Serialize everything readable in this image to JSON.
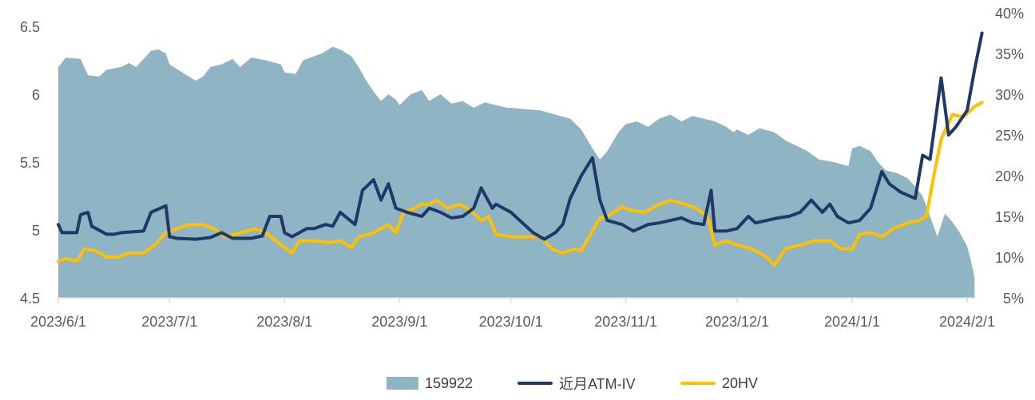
{
  "chart_data": {
    "type": "line",
    "x_ticks": [
      "2023/6/1",
      "2023/7/1",
      "2023/8/1",
      "2023/9/1",
      "2023/10/1",
      "2023/11/1",
      "2023/12/1",
      "2024/1/1",
      "2024/2/1"
    ],
    "y_left_ticks": [
      "4.5",
      "5",
      "5.5",
      "6",
      "6.5"
    ],
    "y_left_range": [
      4.5,
      6.5
    ],
    "y_right_ticks": [
      "5%",
      "10%",
      "15%",
      "20%",
      "25%",
      "30%",
      "35%",
      "40%"
    ],
    "y_right_range": [
      5,
      40
    ],
    "series": [
      {
        "name": "159922",
        "type": "area",
        "axis": "left",
        "color": "#8fb5c5",
        "points": [
          [
            "2023/6/1",
            6.2
          ],
          [
            "2023/6/3",
            6.27
          ],
          [
            "2023/6/7",
            6.26
          ],
          [
            "2023/6/9",
            6.14
          ],
          [
            "2023/6/12",
            6.13
          ],
          [
            "2023/6/14",
            6.18
          ],
          [
            "2023/6/18",
            6.2
          ],
          [
            "2023/6/20",
            6.23
          ],
          [
            "2023/6/22",
            6.2
          ],
          [
            "2023/6/26",
            6.32
          ],
          [
            "2023/6/28",
            6.33
          ],
          [
            "2023/6/30",
            6.3
          ],
          [
            "2023/7/1",
            6.22
          ],
          [
            "2023/7/5",
            6.15
          ],
          [
            "2023/7/8",
            6.1
          ],
          [
            "2023/7/10",
            6.13
          ],
          [
            "2023/7/12",
            6.2
          ],
          [
            "2023/7/15",
            6.22
          ],
          [
            "2023/7/18",
            6.26
          ],
          [
            "2023/7/20",
            6.2
          ],
          [
            "2023/7/23",
            6.27
          ],
          [
            "2023/7/27",
            6.25
          ],
          [
            "2023/7/31",
            6.22
          ],
          [
            "2023/8/1",
            6.16
          ],
          [
            "2023/8/4",
            6.15
          ],
          [
            "2023/8/6",
            6.25
          ],
          [
            "2023/8/9",
            6.28
          ],
          [
            "2023/8/11",
            6.3
          ],
          [
            "2023/8/14",
            6.35
          ],
          [
            "2023/8/16",
            6.33
          ],
          [
            "2023/8/19",
            6.28
          ],
          [
            "2023/8/21",
            6.2
          ],
          [
            "2023/8/23",
            6.1
          ],
          [
            "2023/8/25",
            6.02
          ],
          [
            "2023/8/27",
            5.95
          ],
          [
            "2023/8/29",
            6.0
          ],
          [
            "2023/8/31",
            5.96
          ],
          [
            "2023/9/1",
            5.92
          ],
          [
            "2023/9/4",
            6.0
          ],
          [
            "2023/9/7",
            6.03
          ],
          [
            "2023/9/9",
            5.95
          ],
          [
            "2023/9/12",
            6.0
          ],
          [
            "2023/9/15",
            5.93
          ],
          [
            "2023/9/18",
            5.95
          ],
          [
            "2023/9/21",
            5.9
          ],
          [
            "2023/9/24",
            5.94
          ],
          [
            "2023/9/27",
            5.92
          ],
          [
            "2023/9/30",
            5.9
          ],
          [
            "2023/10/1",
            5.9
          ],
          [
            "2023/10/9",
            5.88
          ],
          [
            "2023/10/13",
            5.85
          ],
          [
            "2023/10/17",
            5.82
          ],
          [
            "2023/10/20",
            5.74
          ],
          [
            "2023/10/23",
            5.6
          ],
          [
            "2023/10/25",
            5.52
          ],
          [
            "2023/10/27",
            5.58
          ],
          [
            "2023/10/30",
            5.72
          ],
          [
            "2023/10/31",
            5.75
          ],
          [
            "2023/11/1",
            5.78
          ],
          [
            "2023/11/4",
            5.8
          ],
          [
            "2023/11/7",
            5.76
          ],
          [
            "2023/11/10",
            5.82
          ],
          [
            "2023/11/13",
            5.85
          ],
          [
            "2023/11/16",
            5.8
          ],
          [
            "2023/11/19",
            5.84
          ],
          [
            "2023/11/22",
            5.82
          ],
          [
            "2023/11/25",
            5.8
          ],
          [
            "2023/11/28",
            5.76
          ],
          [
            "2023/11/30",
            5.72
          ],
          [
            "2023/12/1",
            5.74
          ],
          [
            "2023/12/4",
            5.7
          ],
          [
            "2023/12/7",
            5.75
          ],
          [
            "2023/12/11",
            5.72
          ],
          [
            "2023/12/14",
            5.66
          ],
          [
            "2023/12/17",
            5.62
          ],
          [
            "2023/12/20",
            5.58
          ],
          [
            "2023/12/23",
            5.52
          ],
          [
            "2023/12/27",
            5.5
          ],
          [
            "2023/12/31",
            5.47
          ],
          [
            "2024/1/1",
            5.6
          ],
          [
            "2024/1/3",
            5.62
          ],
          [
            "2024/1/6",
            5.58
          ],
          [
            "2024/1/8",
            5.5
          ],
          [
            "2024/1/10",
            5.44
          ],
          [
            "2024/1/13",
            5.42
          ],
          [
            "2024/1/16",
            5.38
          ],
          [
            "2024/1/18",
            5.32
          ],
          [
            "2024/1/20",
            5.25
          ],
          [
            "2024/1/22",
            5.1
          ],
          [
            "2024/1/24",
            4.95
          ],
          [
            "2024/1/26",
            5.12
          ],
          [
            "2024/1/28",
            5.06
          ],
          [
            "2024/1/30",
            4.98
          ],
          [
            "2024/2/1",
            4.88
          ],
          [
            "2024/2/2",
            4.78
          ],
          [
            "2024/2/3",
            4.65
          ]
        ]
      },
      {
        "name": "近月ATM-IV",
        "type": "line",
        "axis": "right",
        "color": "#1f3867",
        "points": [
          [
            "2023/6/1",
            14.0
          ],
          [
            "2023/6/2",
            13.0
          ],
          [
            "2023/6/6",
            13.0
          ],
          [
            "2023/6/7",
            15.2
          ],
          [
            "2023/6/9",
            15.5
          ],
          [
            "2023/6/10",
            13.8
          ],
          [
            "2023/6/14",
            12.8
          ],
          [
            "2023/6/16",
            12.8
          ],
          [
            "2023/6/18",
            13.0
          ],
          [
            "2023/6/24",
            13.2
          ],
          [
            "2023/6/26",
            15.5
          ],
          [
            "2023/6/30",
            16.3
          ],
          [
            "2023/7/1",
            12.5
          ],
          [
            "2023/7/3",
            12.3
          ],
          [
            "2023/7/8",
            12.2
          ],
          [
            "2023/7/12",
            12.4
          ],
          [
            "2023/7/15",
            13.0
          ],
          [
            "2023/7/18",
            12.3
          ],
          [
            "2023/7/23",
            12.3
          ],
          [
            "2023/7/26",
            12.6
          ],
          [
            "2023/7/28",
            15.0
          ],
          [
            "2023/7/31",
            15.0
          ],
          [
            "2023/8/1",
            13.0
          ],
          [
            "2023/8/3",
            12.5
          ],
          [
            "2023/8/7",
            13.5
          ],
          [
            "2023/8/9",
            13.5
          ],
          [
            "2023/8/12",
            14.0
          ],
          [
            "2023/8/14",
            13.8
          ],
          [
            "2023/8/16",
            15.5
          ],
          [
            "2023/8/20",
            14.0
          ],
          [
            "2023/8/22",
            18.2
          ],
          [
            "2023/8/25",
            19.5
          ],
          [
            "2023/8/27",
            17.0
          ],
          [
            "2023/8/29",
            19.0
          ],
          [
            "2023/8/31",
            16.0
          ],
          [
            "2023/9/3",
            15.5
          ],
          [
            "2023/9/7",
            15.0
          ],
          [
            "2023/9/9",
            16.0
          ],
          [
            "2023/9/12",
            15.5
          ],
          [
            "2023/9/15",
            14.8
          ],
          [
            "2023/9/18",
            15.0
          ],
          [
            "2023/9/21",
            16.0
          ],
          [
            "2023/9/23",
            18.5
          ],
          [
            "2023/9/26",
            16.0
          ],
          [
            "2023/9/27",
            16.5
          ],
          [
            "2023/10/1",
            15.5
          ],
          [
            "2023/10/7",
            13.0
          ],
          [
            "2023/10/10",
            12.2
          ],
          [
            "2023/10/13",
            13.0
          ],
          [
            "2023/10/15",
            14.0
          ],
          [
            "2023/10/17",
            17.2
          ],
          [
            "2023/10/20",
            20.0
          ],
          [
            "2023/10/23",
            22.2
          ],
          [
            "2023/10/25",
            17.0
          ],
          [
            "2023/10/27",
            14.5
          ],
          [
            "2023/10/31",
            14.0
          ],
          [
            "2023/11/3",
            13.2
          ],
          [
            "2023/11/7",
            14.0
          ],
          [
            "2023/11/10",
            14.2
          ],
          [
            "2023/11/13",
            14.5
          ],
          [
            "2023/11/16",
            14.8
          ],
          [
            "2023/11/19",
            14.2
          ],
          [
            "2023/11/22",
            14.0
          ],
          [
            "2023/11/24",
            18.2
          ],
          [
            "2023/11/25",
            13.2
          ],
          [
            "2023/11/28",
            13.2
          ],
          [
            "2023/12/1",
            13.5
          ],
          [
            "2023/12/4",
            15.0
          ],
          [
            "2023/12/6",
            14.2
          ],
          [
            "2023/12/9",
            14.5
          ],
          [
            "2023/12/12",
            14.8
          ],
          [
            "2023/12/15",
            15.0
          ],
          [
            "2023/12/18",
            15.5
          ],
          [
            "2023/12/21",
            17.0
          ],
          [
            "2023/12/24",
            15.5
          ],
          [
            "2023/12/26",
            16.5
          ],
          [
            "2023/12/28",
            15.0
          ],
          [
            "2023/12/31",
            14.2
          ],
          [
            "2024/1/3",
            14.5
          ],
          [
            "2024/1/6",
            16.0
          ],
          [
            "2024/1/9",
            20.5
          ],
          [
            "2024/1/11",
            19.0
          ],
          [
            "2024/1/14",
            18.0
          ],
          [
            "2024/1/18",
            17.2
          ],
          [
            "2024/1/20",
            22.5
          ],
          [
            "2024/1/22",
            22.0
          ],
          [
            "2024/1/25",
            32.0
          ],
          [
            "2024/1/27",
            25.0
          ],
          [
            "2024/1/29",
            26.0
          ],
          [
            "2024/2/1",
            28.0
          ],
          [
            "2024/2/3",
            33.0
          ],
          [
            "2024/2/5",
            37.5
          ]
        ]
      },
      {
        "name": "20HV",
        "type": "line",
        "axis": "right",
        "color": "#ffc000",
        "points": [
          [
            "2023/6/1",
            9.5
          ],
          [
            "2023/6/3",
            9.8
          ],
          [
            "2023/6/6",
            9.5
          ],
          [
            "2023/6/8",
            11.0
          ],
          [
            "2023/6/11",
            10.8
          ],
          [
            "2023/6/14",
            10.0
          ],
          [
            "2023/6/17",
            10.0
          ],
          [
            "2023/6/20",
            10.5
          ],
          [
            "2023/6/24",
            10.5
          ],
          [
            "2023/6/27",
            11.5
          ],
          [
            "2023/6/30",
            13.0
          ],
          [
            "2023/7/3",
            13.5
          ],
          [
            "2023/7/6",
            14.0
          ],
          [
            "2023/7/10",
            14.0
          ],
          [
            "2023/7/13",
            13.5
          ],
          [
            "2023/7/16",
            12.5
          ],
          [
            "2023/7/20",
            13.0
          ],
          [
            "2023/7/24",
            13.5
          ],
          [
            "2023/7/27",
            13.0
          ],
          [
            "2023/7/31",
            11.5
          ],
          [
            "2023/8/3",
            10.5
          ],
          [
            "2023/8/5",
            12.0
          ],
          [
            "2023/8/9",
            12.0
          ],
          [
            "2023/8/13",
            11.8
          ],
          [
            "2023/8/16",
            12.0
          ],
          [
            "2023/8/19",
            11.2
          ],
          [
            "2023/8/21",
            12.5
          ],
          [
            "2023/8/25",
            13.0
          ],
          [
            "2023/8/27",
            13.5
          ],
          [
            "2023/8/29",
            14.0
          ],
          [
            "2023/8/31",
            13.0
          ],
          [
            "2023/9/2",
            15.5
          ],
          [
            "2023/9/5",
            16.0
          ],
          [
            "2023/9/7",
            16.5
          ],
          [
            "2023/9/9",
            16.5
          ],
          [
            "2023/9/11",
            17.0
          ],
          [
            "2023/9/14",
            16.0
          ],
          [
            "2023/9/17",
            16.5
          ],
          [
            "2023/9/20",
            15.8
          ],
          [
            "2023/9/23",
            14.5
          ],
          [
            "2023/9/25",
            15.0
          ],
          [
            "2023/9/27",
            12.8
          ],
          [
            "2023/10/1",
            12.5
          ],
          [
            "2023/10/9",
            12.5
          ],
          [
            "2023/10/12",
            11.0
          ],
          [
            "2023/10/15",
            10.5
          ],
          [
            "2023/10/18",
            11.0
          ],
          [
            "2023/10/20",
            10.8
          ],
          [
            "2023/10/25",
            14.8
          ],
          [
            "2023/10/27",
            15.0
          ],
          [
            "2023/10/31",
            16.2
          ],
          [
            "2023/11/2",
            15.8
          ],
          [
            "2023/11/6",
            15.5
          ],
          [
            "2023/11/10",
            16.5
          ],
          [
            "2023/11/13",
            17.0
          ],
          [
            "2023/11/17",
            16.5
          ],
          [
            "2023/11/20",
            16.0
          ],
          [
            "2023/11/23",
            15.0
          ],
          [
            "2023/11/25",
            11.5
          ],
          [
            "2023/11/28",
            12.0
          ],
          [
            "2023/12/1",
            11.5
          ],
          [
            "2023/12/5",
            11.0
          ],
          [
            "2023/12/9",
            10.0
          ],
          [
            "2023/12/11",
            9.0
          ],
          [
            "2023/12/14",
            11.0
          ],
          [
            "2023/12/18",
            11.5
          ],
          [
            "2023/12/22",
            12.0
          ],
          [
            "2023/12/26",
            12.0
          ],
          [
            "2023/12/29",
            11.0
          ],
          [
            "2024/1/1",
            11.0
          ],
          [
            "2024/1/3",
            12.8
          ],
          [
            "2024/1/6",
            13.0
          ],
          [
            "2024/1/9",
            12.5
          ],
          [
            "2024/1/12",
            13.5
          ],
          [
            "2024/1/16",
            14.2
          ],
          [
            "2024/1/19",
            14.5
          ],
          [
            "2024/1/21",
            15.0
          ],
          [
            "2024/1/23",
            20.0
          ],
          [
            "2024/1/25",
            24.5
          ],
          [
            "2024/1/28",
            27.5
          ],
          [
            "2024/1/31",
            27.2
          ],
          [
            "2024/2/3",
            28.5
          ],
          [
            "2024/2/5",
            29.0
          ]
        ]
      }
    ],
    "legend_position": "bottom",
    "grid": false
  },
  "colors": {
    "area": "#8fb5c5",
    "iv": "#1f3867",
    "hv": "#ffc000",
    "text": "#595959",
    "axis": "#d9d9d9"
  },
  "legend": [
    {
      "label": "159922",
      "kind": "area",
      "color": "#8fb5c5"
    },
    {
      "label": "近月ATM-IV",
      "kind": "line",
      "color": "#1f3867"
    },
    {
      "label": "20HV",
      "kind": "line",
      "color": "#ffc000"
    }
  ]
}
